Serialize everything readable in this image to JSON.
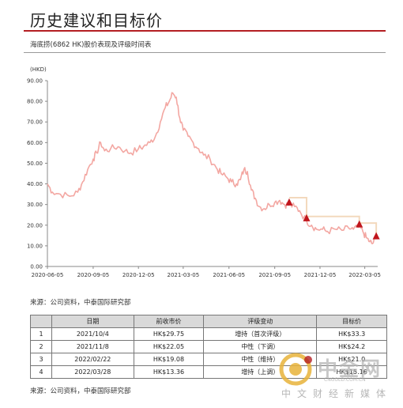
{
  "page": {
    "title": "历史建议和目标价",
    "subtitle": "海底捞(6862 HK)股价表现及评级时间表",
    "source1": "来源：公司资料，中泰国际研究部",
    "source2": "来源：公司资料，中泰国际研究部"
  },
  "chart_data": {
    "type": "line",
    "ylabel": "(HKD)",
    "ylim": [
      0,
      90
    ],
    "yticks": [
      "0.00",
      "10.00",
      "20.00",
      "30.00",
      "40.00",
      "50.00",
      "60.00",
      "70.00",
      "80.00",
      "90.00"
    ],
    "xlim": [
      "2020-06-05",
      "2022-03-31"
    ],
    "xticks": [
      "2020-06-05",
      "2020-09-05",
      "2020-12-05",
      "2021-03-05",
      "2021-06-05",
      "2021-09-05",
      "2021-12-05",
      "2022-03-05"
    ],
    "price_series": {
      "name": "股价",
      "color": "#f3a7a2",
      "points": [
        [
          "2020-06-05",
          40
        ],
        [
          "2020-06-15",
          36
        ],
        [
          "2020-07-01",
          35
        ],
        [
          "2020-07-20",
          34
        ],
        [
          "2020-08-05",
          36
        ],
        [
          "2020-08-15",
          41
        ],
        [
          "2020-08-25",
          47
        ],
        [
          "2020-09-05",
          52
        ],
        [
          "2020-09-12",
          55
        ],
        [
          "2020-09-20",
          60
        ],
        [
          "2020-09-28",
          56
        ],
        [
          "2020-10-10",
          57
        ],
        [
          "2020-10-25",
          58
        ],
        [
          "2020-11-08",
          56
        ],
        [
          "2020-11-20",
          55
        ],
        [
          "2020-12-05",
          57
        ],
        [
          "2020-12-15",
          58
        ],
        [
          "2020-12-28",
          60
        ],
        [
          "2021-01-08",
          63
        ],
        [
          "2021-01-18",
          70
        ],
        [
          "2021-01-28",
          77
        ],
        [
          "2021-02-05",
          80
        ],
        [
          "2021-02-12",
          84
        ],
        [
          "2021-02-19",
          82
        ],
        [
          "2021-02-26",
          72
        ],
        [
          "2021-03-05",
          66
        ],
        [
          "2021-03-15",
          63
        ],
        [
          "2021-03-25",
          60
        ],
        [
          "2021-04-05",
          57
        ],
        [
          "2021-04-15",
          54
        ],
        [
          "2021-04-28",
          52
        ],
        [
          "2021-05-10",
          48
        ],
        [
          "2021-05-20",
          45
        ],
        [
          "2021-06-01",
          43
        ],
        [
          "2021-06-10",
          41
        ],
        [
          "2021-06-20",
          40
        ],
        [
          "2021-06-28",
          42
        ],
        [
          "2021-07-05",
          47
        ],
        [
          "2021-07-12",
          46
        ],
        [
          "2021-07-20",
          37
        ],
        [
          "2021-07-28",
          33
        ],
        [
          "2021-08-05",
          29
        ],
        [
          "2021-08-15",
          28
        ],
        [
          "2021-08-25",
          30
        ],
        [
          "2021-09-05",
          31
        ],
        [
          "2021-09-15",
          32
        ],
        [
          "2021-09-25",
          30
        ],
        [
          "2021-10-04",
          29.75
        ],
        [
          "2021-10-15",
          29
        ],
        [
          "2021-10-25",
          27
        ],
        [
          "2021-11-08",
          22.05
        ],
        [
          "2021-11-18",
          20
        ],
        [
          "2021-11-28",
          18
        ],
        [
          "2021-12-10",
          18
        ],
        [
          "2021-12-20",
          17
        ],
        [
          "2022-01-05",
          18
        ],
        [
          "2022-01-18",
          17.5
        ],
        [
          "2022-02-01",
          18.5
        ],
        [
          "2022-02-10",
          18
        ],
        [
          "2022-02-22",
          19.08
        ],
        [
          "2022-03-01",
          17
        ],
        [
          "2022-03-08",
          14
        ],
        [
          "2022-03-15",
          12
        ],
        [
          "2022-03-20",
          11
        ],
        [
          "2022-03-28",
          13.36
        ]
      ]
    },
    "target_series": {
      "name": "目标价",
      "color": "#f3d9bd",
      "steps": [
        [
          "2021-10-04",
          "2021-11-08",
          33.3
        ],
        [
          "2021-11-08",
          "2022-02-22",
          24.2
        ],
        [
          "2022-02-22",
          "2022-03-28",
          21.0
        ],
        [
          "2022-03-28",
          "2022-03-31",
          15.16
        ]
      ]
    },
    "rating_markers": {
      "color": "#c0151c",
      "points": [
        [
          "2021-10-04",
          29.75
        ],
        [
          "2021-11-08",
          22.05
        ],
        [
          "2022-02-22",
          19.08
        ],
        [
          "2022-03-28",
          13.36
        ]
      ]
    }
  },
  "table": {
    "headers": [
      "",
      "日期",
      "前收市价",
      "评级变动",
      "目标价"
    ],
    "rows": [
      [
        "1",
        "2021/10/4",
        "HK$29.75",
        "增持（首次评级）",
        "HK$33.3"
      ],
      [
        "2",
        "2021/11/8",
        "HK$22.05",
        "中性（下调）",
        "HK$24.2"
      ],
      [
        "3",
        "2022/02/22",
        "HK$19.08",
        "中性（维持）",
        "HK$21.0"
      ],
      [
        "4",
        "2022/03/28",
        "HK$13.36",
        "增持（上调）",
        "HK$15.16"
      ]
    ]
  },
  "watermark": {
    "brand": "中金网",
    "url": "CNGOLD.COM.CN",
    "tagline": "中文财经新媒体",
    "color": "#e8b33a"
  }
}
